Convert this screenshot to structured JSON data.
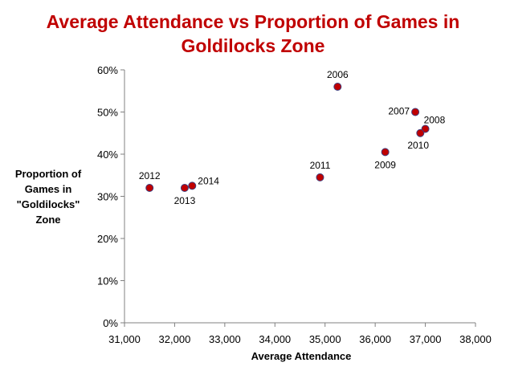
{
  "chart_data": {
    "type": "scatter",
    "title_lines": [
      "Average Attendance vs Proportion of Games in",
      "Goldilocks Zone"
    ],
    "xlabel": "Average Attendance",
    "ylabel_lines": [
      "Proportion of",
      "Games in",
      "\"Goldilocks\"",
      "Zone"
    ],
    "xlim": [
      31000,
      38000
    ],
    "ylim": [
      0,
      60
    ],
    "x_ticks": [
      31000,
      32000,
      33000,
      34000,
      35000,
      36000,
      37000,
      38000
    ],
    "x_tick_labels": [
      "31,000",
      "32,000",
      "33,000",
      "34,000",
      "35,000",
      "36,000",
      "37,000",
      "38,000"
    ],
    "y_ticks": [
      0,
      10,
      20,
      30,
      40,
      50,
      60
    ],
    "y_tick_labels": [
      "0%",
      "10%",
      "20%",
      "30%",
      "40%",
      "50%",
      "60%"
    ],
    "grid": false,
    "marker_color": "#c00000",
    "marker_edge_color": "#3f3f7f",
    "title_color": "#c00000",
    "points": [
      {
        "label": "2006",
        "x": 35250,
        "y": 56,
        "label_pos": "above"
      },
      {
        "label": "2007",
        "x": 36800,
        "y": 50,
        "label_pos": "left"
      },
      {
        "label": "2008",
        "x": 37000,
        "y": 46,
        "label_pos": "above-right"
      },
      {
        "label": "2009",
        "x": 36200,
        "y": 40.5,
        "label_pos": "below"
      },
      {
        "label": "2010",
        "x": 36900,
        "y": 45,
        "label_pos": "below-right"
      },
      {
        "label": "2011",
        "x": 34900,
        "y": 34.5,
        "label_pos": "above"
      },
      {
        "label": "2012",
        "x": 31500,
        "y": 32,
        "label_pos": "above"
      },
      {
        "label": "2013",
        "x": 32200,
        "y": 32,
        "label_pos": "below"
      },
      {
        "label": "2014",
        "x": 32350,
        "y": 32.5,
        "label_pos": "right"
      }
    ]
  }
}
